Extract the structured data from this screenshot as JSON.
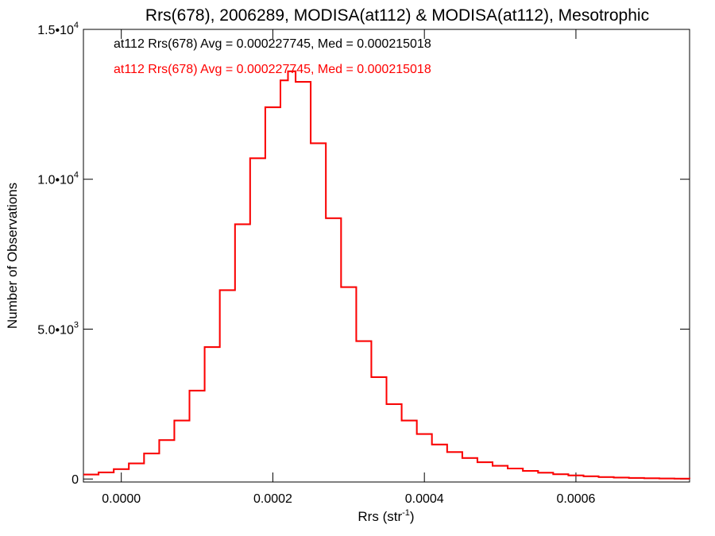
{
  "chart_data": {
    "type": "histogram-step",
    "title": "Rrs(678), 2006289, MODISA(at112) & MODISA(at112), Mesotrophic",
    "xlabel": "Rrs (str",
    "xlabel_sup": "-1",
    "xlabel_end": ")",
    "ylabel": "Number of Observations",
    "xlim": [
      -5e-05,
      0.00075
    ],
    "ylim": [
      -100,
      15000
    ],
    "x_ticks": [
      {
        "value": 0.0,
        "label": "0.0000"
      },
      {
        "value": 0.0002,
        "label": "0.0002"
      },
      {
        "value": 0.0004,
        "label": "0.0004"
      },
      {
        "value": 0.0006,
        "label": "0.0006"
      }
    ],
    "y_ticks": [
      {
        "value": 0,
        "label": "0",
        "sup": ""
      },
      {
        "value": 5000,
        "label": "5.0•10",
        "sup": "3"
      },
      {
        "value": 10000,
        "label": "1.0•10",
        "sup": "4"
      },
      {
        "value": 15000,
        "label": "1.5•10",
        "sup": "4"
      }
    ],
    "annotations": [
      {
        "text": "at112 Rrs(678) Avg = 0.000227745, Med = 0.000215018",
        "color": "#000000"
      },
      {
        "text": "at112 Rrs(678) Avg = 0.000227745, Med = 0.000215018",
        "color": "#ff0000"
      }
    ],
    "series": [
      {
        "color": "#000000",
        "x": [
          -5e-05,
          -3e-05,
          -1e-05,
          1e-05,
          3e-05,
          5e-05,
          7e-05,
          9e-05,
          0.00011,
          0.00013,
          0.00015,
          0.00017,
          0.00019,
          0.00021,
          0.00022,
          0.00023,
          0.00025,
          0.00027,
          0.00029,
          0.00031,
          0.00033,
          0.00035,
          0.00037,
          0.00039,
          0.00041,
          0.00043,
          0.00045,
          0.00047,
          0.00049,
          0.00051,
          0.00053,
          0.00055,
          0.00057,
          0.00059,
          0.00061,
          0.00063,
          0.00065,
          0.00067,
          0.00069,
          0.00071,
          0.00073,
          0.00075
        ],
        "y": [
          150,
          220,
          330,
          520,
          850,
          1300,
          1950,
          2950,
          4400,
          6300,
          8500,
          10700,
          12400,
          13300,
          13600,
          13250,
          11200,
          8700,
          6400,
          4600,
          3400,
          2500,
          1950,
          1500,
          1150,
          900,
          700,
          560,
          440,
          350,
          270,
          210,
          160,
          120,
          90,
          65,
          48,
          34,
          24,
          16,
          10,
          6
        ]
      },
      {
        "color": "#ff0000",
        "x": [
          -5e-05,
          -3e-05,
          -1e-05,
          1e-05,
          3e-05,
          5e-05,
          7e-05,
          9e-05,
          0.00011,
          0.00013,
          0.00015,
          0.00017,
          0.00019,
          0.00021,
          0.00022,
          0.00023,
          0.00025,
          0.00027,
          0.00029,
          0.00031,
          0.00033,
          0.00035,
          0.00037,
          0.00039,
          0.00041,
          0.00043,
          0.00045,
          0.00047,
          0.00049,
          0.00051,
          0.00053,
          0.00055,
          0.00057,
          0.00059,
          0.00061,
          0.00063,
          0.00065,
          0.00067,
          0.00069,
          0.00071,
          0.00073,
          0.00075
        ],
        "y": [
          150,
          220,
          330,
          520,
          850,
          1300,
          1950,
          2950,
          4400,
          6300,
          8500,
          10700,
          12400,
          13300,
          13600,
          13250,
          11200,
          8700,
          6400,
          4600,
          3400,
          2500,
          1950,
          1500,
          1150,
          900,
          700,
          560,
          440,
          350,
          270,
          210,
          160,
          120,
          90,
          65,
          48,
          34,
          24,
          16,
          10,
          6
        ]
      }
    ]
  }
}
